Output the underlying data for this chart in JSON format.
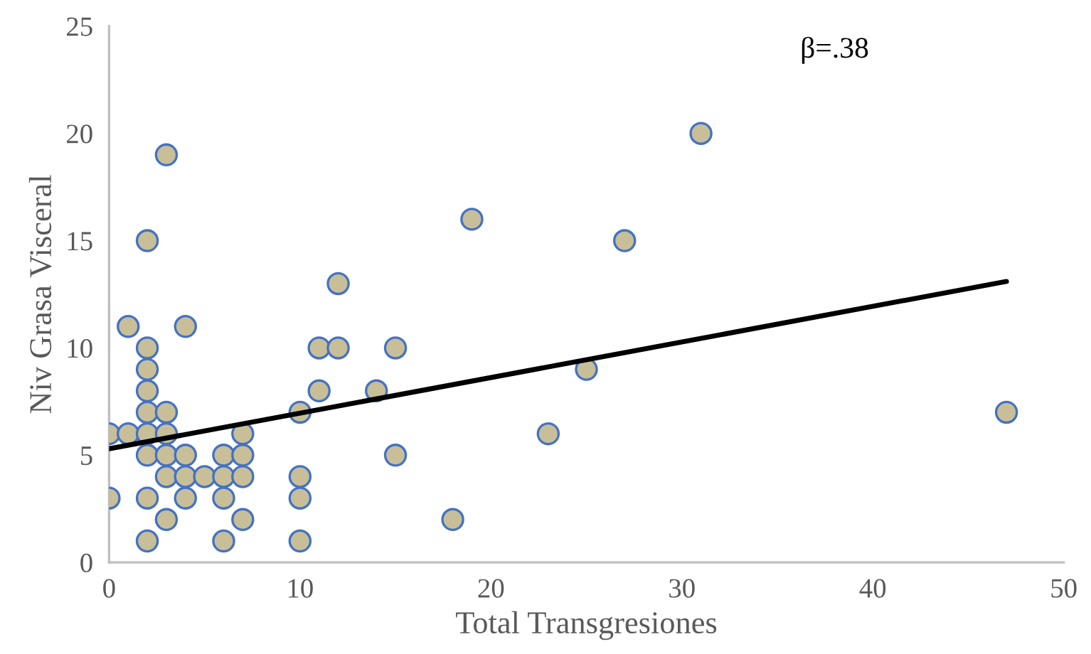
{
  "chart_data": {
    "type": "scatter",
    "xlabel": "Total Transgresiones",
    "ylabel": "Niv Grasa Visceral",
    "xlim": [
      0,
      50
    ],
    "xticks": [
      0,
      10,
      20,
      30,
      40,
      50
    ],
    "ylim": [
      0,
      25
    ],
    "yticks": [
      0,
      5,
      10,
      15,
      20,
      25
    ],
    "grid": false,
    "annotations": [
      "β=.38"
    ],
    "series": [
      {
        "color": "#c8bf98",
        "marker": "circle",
        "x": [
          3,
          2,
          12,
          1,
          4,
          2,
          11,
          12,
          15,
          2,
          2,
          11,
          14,
          2,
          3,
          10,
          0,
          1,
          2,
          3,
          7,
          2,
          3,
          4,
          6,
          7,
          15,
          3,
          4,
          5,
          6,
          7,
          10,
          0,
          2,
          4,
          6,
          10,
          3,
          7,
          2,
          6,
          10,
          18,
          19,
          23,
          25,
          27,
          31,
          47
        ],
        "values": [
          19,
          15,
          13,
          11,
          11,
          10,
          10,
          10,
          10,
          9,
          8,
          8,
          8,
          7,
          7,
          7,
          6,
          6,
          6,
          6,
          6,
          5,
          5,
          5,
          5,
          5,
          5,
          4,
          4,
          4,
          4,
          4,
          4,
          3,
          3,
          3,
          3,
          3,
          2,
          2,
          1,
          1,
          1,
          2,
          16,
          6,
          9,
          15,
          20,
          7
        ]
      },
      {
        "type": "line",
        "color": "#000000",
        "x": [
          0,
          47
        ],
        "values": [
          5.3,
          13.1
        ]
      }
    ]
  }
}
